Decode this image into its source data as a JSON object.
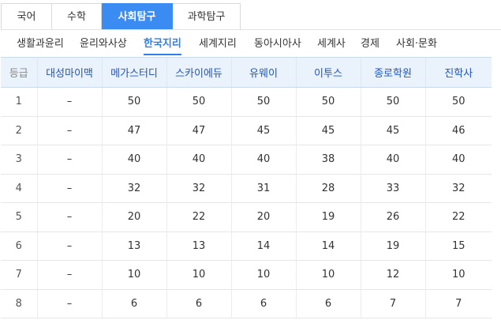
{
  "subject_tabs": [
    {
      "label": "국어",
      "active": false
    },
    {
      "label": "수학",
      "active": false
    },
    {
      "label": "사회탐구",
      "active": true
    },
    {
      "label": "과학탐구",
      "active": false
    }
  ],
  "sub_tabs": [
    {
      "label": "생활과윤리",
      "active": false
    },
    {
      "label": "윤리와사상",
      "active": false
    },
    {
      "label": "한국지리",
      "active": true
    },
    {
      "label": "세계지리",
      "active": false
    },
    {
      "label": "동아시아사",
      "active": false
    },
    {
      "label": "세계사",
      "active": false
    },
    {
      "label": "경제",
      "active": false
    },
    {
      "label": "사회·문화",
      "active": false
    }
  ],
  "table": {
    "headers": [
      "등급",
      "대성마이맥",
      "메가스터디",
      "스카이에듀",
      "유웨이",
      "이투스",
      "종로학원",
      "진학사"
    ],
    "rows": [
      [
        "1",
        "–",
        "50",
        "50",
        "50",
        "50",
        "50",
        "50"
      ],
      [
        "2",
        "–",
        "47",
        "47",
        "45",
        "45",
        "45",
        "46"
      ],
      [
        "3",
        "–",
        "40",
        "40",
        "40",
        "38",
        "40",
        "40"
      ],
      [
        "4",
        "–",
        "32",
        "32",
        "31",
        "28",
        "33",
        "32"
      ],
      [
        "5",
        "–",
        "20",
        "22",
        "20",
        "19",
        "26",
        "22"
      ],
      [
        "6",
        "–",
        "13",
        "13",
        "14",
        "14",
        "19",
        "15"
      ],
      [
        "7",
        "–",
        "10",
        "10",
        "10",
        "10",
        "12",
        "10"
      ],
      [
        "8",
        "–",
        "6",
        "6",
        "6",
        "6",
        "7",
        "7"
      ]
    ]
  },
  "colors": {
    "active_tab_bg": "#3b8cf2",
    "active_subtab": "#2f7fe8",
    "header_bg": "#eaf2fc",
    "header_text": "#1f55c5"
  }
}
